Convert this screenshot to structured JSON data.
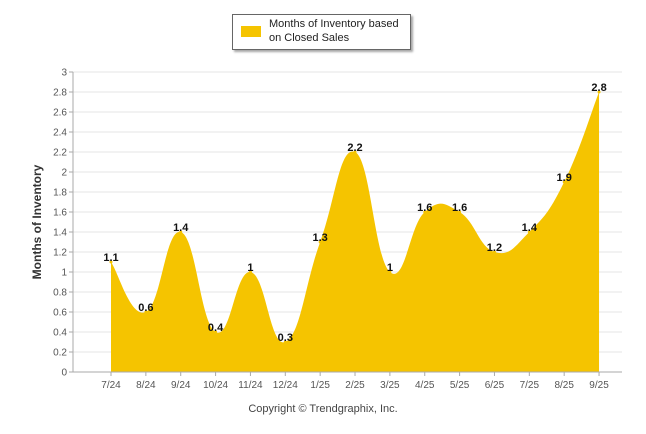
{
  "chart_data": {
    "type": "area",
    "title": "",
    "xlabel": "",
    "ylabel": "Months of Inventory",
    "categories": [
      "7/24",
      "8/24",
      "9/24",
      "10/24",
      "11/24",
      "12/24",
      "1/25",
      "2/25",
      "3/25",
      "4/25",
      "5/25",
      "6/25",
      "7/25",
      "8/25",
      "9/25"
    ],
    "series": [
      {
        "name": "Months of Inventory based on Closed Sales",
        "values": [
          1.1,
          0.6,
          1.4,
          0.4,
          1,
          0.3,
          1.3,
          2.2,
          1,
          1.6,
          1.6,
          1.2,
          1.4,
          1.9,
          2.8
        ],
        "color": "#F5C400"
      }
    ],
    "data_labels": [
      "1.1",
      "0.6",
      "1.4",
      "0.4",
      "1",
      "0.3",
      "1.3",
      "2.2",
      "1",
      "1.6",
      "1.6",
      "1.2",
      "1.4",
      "1.9",
      "2.8"
    ],
    "yticks": [
      "0",
      "0.2",
      "0.4",
      "0.6",
      "0.8",
      "1",
      "1.2",
      "1.4",
      "1.6",
      "1.8",
      "2",
      "2.2",
      "2.4",
      "2.6",
      "2.8",
      "3"
    ],
    "ylim": [
      0,
      3
    ],
    "grid": true,
    "legend_position": "top-center"
  },
  "legend": {
    "label_line1": "Months of Inventory based",
    "label_line2": "on Closed Sales"
  },
  "footer": {
    "copyright": "Copyright © Trendgraphix, Inc."
  }
}
